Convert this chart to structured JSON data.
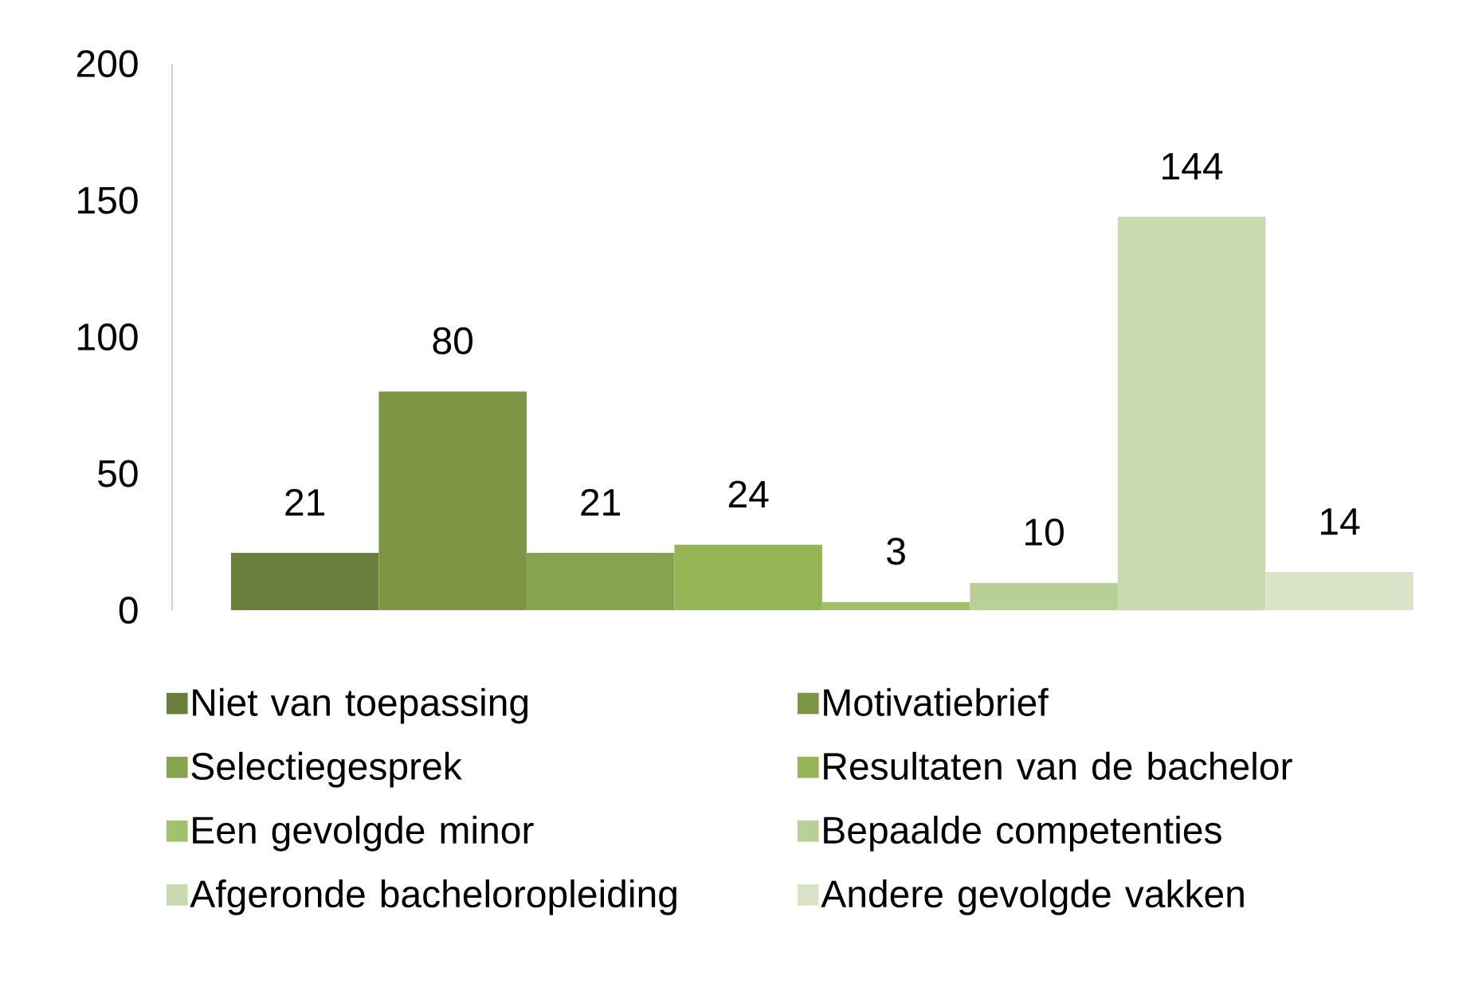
{
  "chart_data": {
    "type": "bar",
    "categories": [
      null
    ],
    "series": [
      {
        "name": "Niet van toepassing",
        "color": "#6a7f3b",
        "values": [
          21
        ]
      },
      {
        "name": "Motivatiebrief",
        "color": "#7c9646",
        "values": [
          80
        ]
      },
      {
        "name": "Selectiegesprek",
        "color": "#87a34f",
        "values": [
          21
        ]
      },
      {
        "name": "Resultaten van de bachelor",
        "color": "#96b556",
        "values": [
          24
        ]
      },
      {
        "name": "Een gevolgde minor",
        "color": "#a3c06b",
        "values": [
          3
        ]
      },
      {
        "name": "Bepaalde competenties",
        "color": "#b8cf96",
        "values": [
          10
        ]
      },
      {
        "name": "Afgeronde bacheloropleiding",
        "color": "#c9d9b0",
        "values": [
          144
        ]
      },
      {
        "name": "Andere gevolgde vakken",
        "color": "#dae3c8",
        "values": [
          14
        ]
      }
    ],
    "ylim": [
      0,
      200
    ],
    "yticks": [
      0,
      50,
      100,
      150,
      200
    ],
    "data_labels": true,
    "legend": "bottom"
  }
}
